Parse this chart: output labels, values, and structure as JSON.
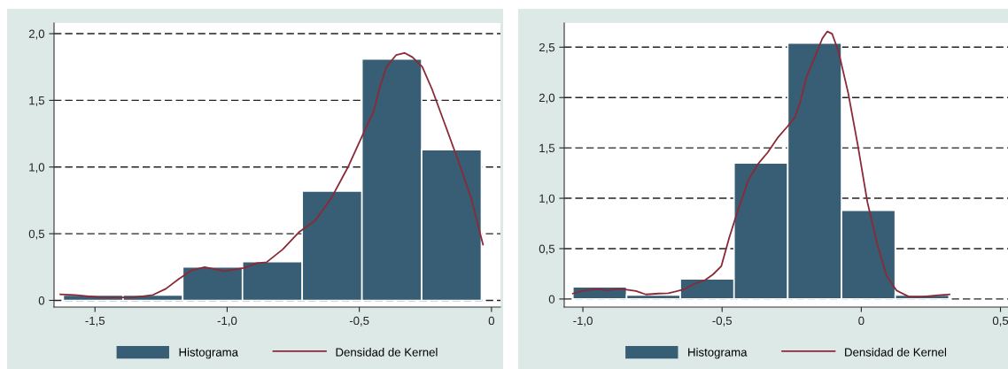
{
  "chart_data": [
    {
      "type": "histogram",
      "xlim": [
        -1.655,
        0.034
      ],
      "ylim": [
        -0.05,
        2.08
      ],
      "xticks": [
        {
          "value": -1.5,
          "label": "-1,5"
        },
        {
          "value": -1.0,
          "label": "-1,0"
        },
        {
          "value": -0.5,
          "label": "-0,5"
        },
        0
      ],
      "yticks": [
        0,
        {
          "value": 0.5,
          "label": "0,5"
        },
        {
          "value": 1.0,
          "label": "1,0"
        },
        {
          "value": 1.5,
          "label": "1,5"
        },
        {
          "value": 2.0,
          "label": "2,0"
        }
      ],
      "grid": "y",
      "legend": "bottom",
      "series": [
        {
          "name": "Histograma",
          "color": "#375e74",
          "bins": [
            -1.62,
            -1.394,
            -1.168,
            -0.942,
            -0.716,
            -0.49,
            -0.264,
            -0.038
          ],
          "values": [
            0.04,
            0.04,
            0.25,
            0.29,
            0.82,
            1.81,
            1.13
          ]
        },
        {
          "name": "Densidad de Kernel",
          "type": "line",
          "color": "#8b2a36",
          "x": [
            -1.631,
            -1.576,
            -1.478,
            -1.355,
            -1.281,
            -1.232,
            -1.183,
            -1.134,
            -1.085,
            -1.011,
            -0.937,
            -0.888,
            -0.851,
            -0.79,
            -0.729,
            -0.667,
            -0.606,
            -0.544,
            -0.483,
            -0.446,
            -0.421,
            -0.397,
            -0.36,
            -0.329,
            -0.299,
            -0.262,
            -0.225,
            -0.176,
            -0.127,
            -0.077,
            -0.032
          ],
          "values": [
            0.046,
            0.041,
            0.022,
            0.022,
            0.041,
            0.087,
            0.161,
            0.226,
            0.25,
            0.219,
            0.243,
            0.279,
            0.286,
            0.382,
            0.51,
            0.599,
            0.767,
            0.995,
            1.26,
            1.416,
            1.608,
            1.752,
            1.841,
            1.856,
            1.824,
            1.752,
            1.584,
            1.32,
            1.055,
            0.767,
            0.418
          ]
        }
      ]
    },
    {
      "type": "histogram",
      "xlim": [
        -1.067,
        0.527
      ],
      "ylim": [
        -0.08,
        2.74
      ],
      "xticks": [
        {
          "value": -1.0,
          "label": "-1,0"
        },
        {
          "value": -0.5,
          "label": "-0,5"
        },
        0,
        {
          "value": 0.5,
          "label": "0,5"
        }
      ],
      "yticks": [
        0,
        {
          "value": 0.5,
          "label": "0,5"
        },
        {
          "value": 1.0,
          "label": "1,0"
        },
        {
          "value": 1.5,
          "label": "1,5"
        },
        {
          "value": 2.0,
          "label": "2,0"
        },
        {
          "value": 2.5,
          "label": "2,5"
        }
      ],
      "grid": "y",
      "legend": "bottom",
      "series": [
        {
          "name": "Histograma",
          "color": "#375e74",
          "bins": [
            -1.036,
            -0.843,
            -0.65,
            -0.457,
            -0.264,
            -0.071,
            0.122,
            0.315
          ],
          "values": [
            0.12,
            0.04,
            0.2,
            1.35,
            2.54,
            0.88,
            0.04
          ]
        },
        {
          "name": "Densidad de Kernel",
          "type": "line",
          "color": "#8b2a36",
          "x": [
            -1.036,
            -0.993,
            -0.947,
            -0.912,
            -0.866,
            -0.809,
            -0.774,
            -0.728,
            -0.693,
            -0.636,
            -0.601,
            -0.561,
            -0.532,
            -0.503,
            -0.474,
            -0.445,
            -0.405,
            -0.37,
            -0.336,
            -0.301,
            -0.266,
            -0.238,
            -0.22,
            -0.197,
            -0.163,
            -0.14,
            -0.122,
            -0.105,
            -0.082,
            -0.047,
            -0.013,
            0.022,
            0.057,
            0.091,
            0.126,
            0.172,
            0.218,
            0.276,
            0.317
          ],
          "values": [
            0.054,
            0.086,
            0.096,
            0.086,
            0.102,
            0.08,
            0.045,
            0.054,
            0.057,
            0.096,
            0.15,
            0.188,
            0.245,
            0.325,
            0.611,
            0.866,
            1.185,
            1.344,
            1.455,
            1.599,
            1.71,
            1.806,
            1.949,
            2.204,
            2.427,
            2.586,
            2.656,
            2.634,
            2.459,
            2.045,
            1.535,
            0.962,
            0.548,
            0.229,
            0.086,
            0.022,
            0.022,
            0.038,
            0.045
          ]
        }
      ]
    }
  ]
}
